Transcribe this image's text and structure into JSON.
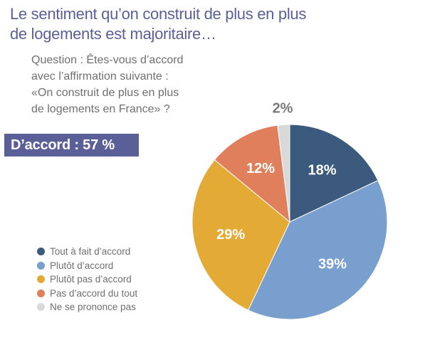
{
  "title": {
    "line1": "Le sentiment qu’on construit de plus en plus",
    "line2": "de logements est majoritaire…"
  },
  "question": {
    "line1": "Question : Êtes-vous d’accord",
    "line2": "avec l’affirmation suivante :",
    "line3": "«On construit de plus en plus",
    "line4": "de logements en France» ?"
  },
  "summary": {
    "label": "D’accord : 57 %"
  },
  "legend": {
    "items": [
      {
        "label": "Tout à fait d’accord",
        "color": "#3b5a7e"
      },
      {
        "label": "Plutôt d’accord",
        "color": "#789fcd"
      },
      {
        "label": "Plutôt pas d’accord",
        "color": "#e3aa36"
      },
      {
        "label": "Pas d’accord du tout",
        "color": "#e07f5c"
      },
      {
        "label": "Ne se prononce pas",
        "color": "#d9d9d9"
      }
    ]
  },
  "chart_data": {
    "type": "pie",
    "categories": [
      "Tout à fait d’accord",
      "Plutôt d’accord",
      "Plutôt pas d’accord",
      "Pas d’accord du tout",
      "Ne se prononce pas"
    ],
    "values": [
      18,
      39,
      29,
      12,
      2
    ],
    "labels": [
      "18%",
      "39%",
      "29%",
      "12%",
      "2%"
    ],
    "colors": [
      "#3b5a7e",
      "#789fcd",
      "#e3aa36",
      "#e07f5c",
      "#d9d9d9"
    ],
    "start": "top, clockwise"
  }
}
